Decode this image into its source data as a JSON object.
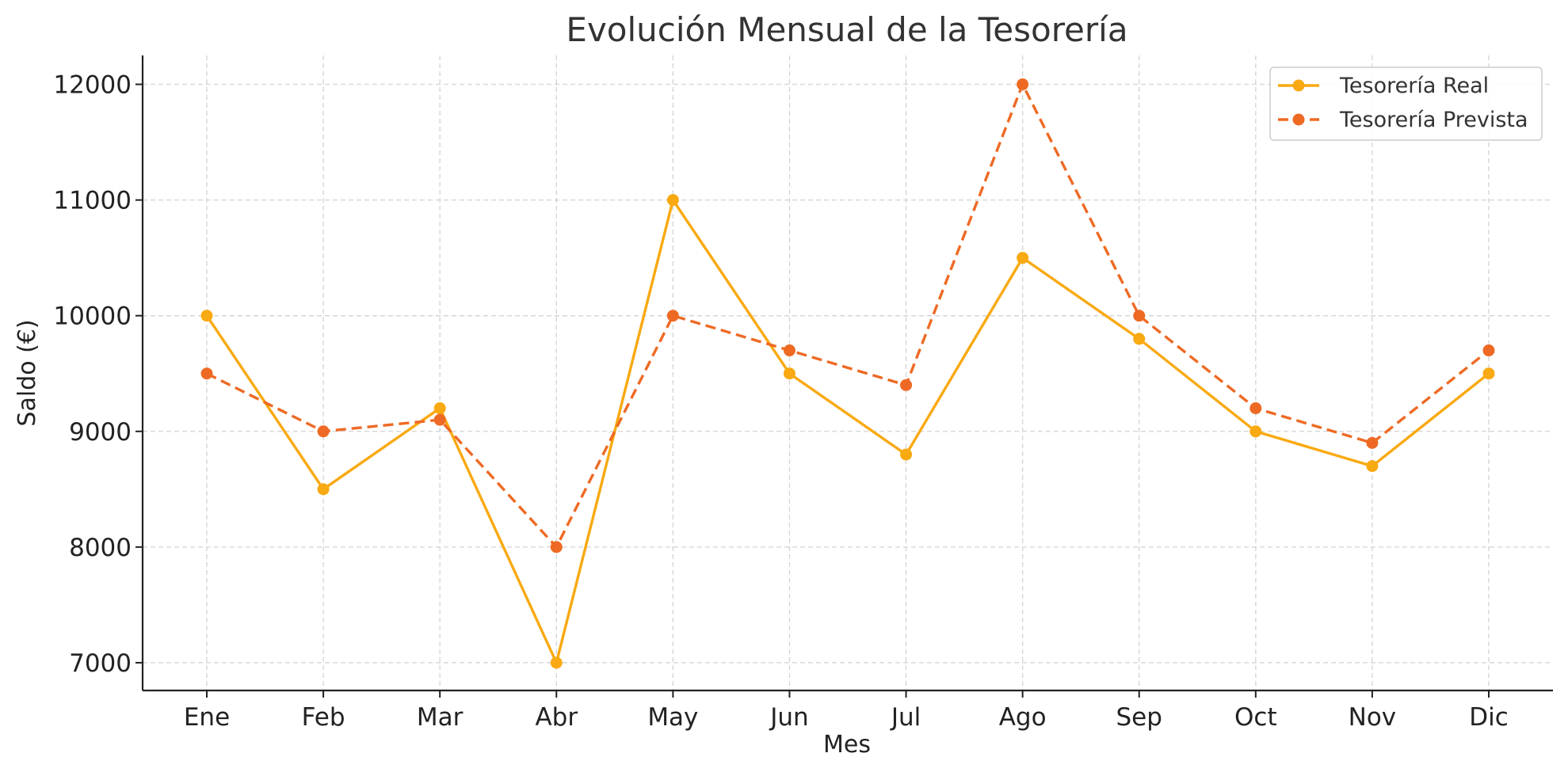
{
  "chart_data": {
    "type": "line",
    "title": "Evolución Mensual de la Tesorería",
    "xlabel": "Mes",
    "ylabel": "Saldo (€)",
    "categories": [
      "Ene",
      "Feb",
      "Mar",
      "Abr",
      "May",
      "Jun",
      "Jul",
      "Ago",
      "Sep",
      "Oct",
      "Nov",
      "Dic"
    ],
    "yticks": [
      7000,
      8000,
      9000,
      10000,
      11000,
      12000
    ],
    "ylim": [
      6760,
      12250
    ],
    "grid": true,
    "legend_position": "top-right",
    "series": [
      {
        "name": "Tesorería Real",
        "color": "#F9A911",
        "style": "solid",
        "marker": "circle",
        "values": [
          10000,
          8500,
          9200,
          7000,
          11000,
          9500,
          8800,
          10500,
          9800,
          9000,
          8700,
          9500
        ]
      },
      {
        "name": "Tesorería Prevista",
        "color": "#EE6A24",
        "style": "dashed",
        "marker": "circle",
        "values": [
          9500,
          9000,
          9100,
          8000,
          10000,
          9700,
          9400,
          12000,
          10000,
          9200,
          8900,
          9700
        ]
      }
    ]
  }
}
